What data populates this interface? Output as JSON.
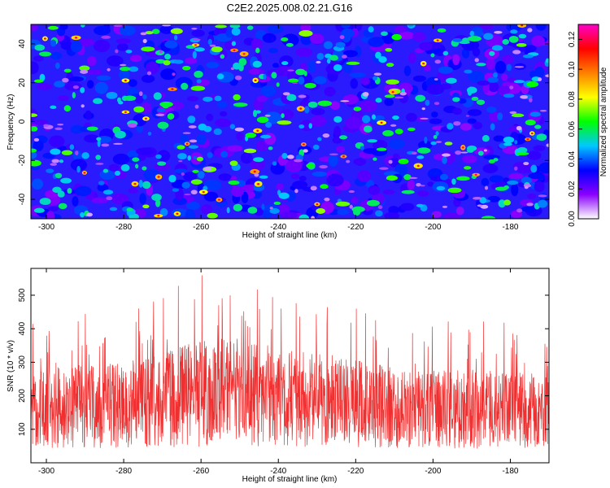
{
  "title": "C2E2.2025.008.02.21.G16",
  "chart_data": [
    {
      "type": "heatmap",
      "title": "C2E2.2025.008.02.21.G16",
      "xlabel": "Height of straight line (km)",
      "ylabel": "Frequency (Hz)",
      "xlim": [
        -304,
        -170
      ],
      "ylim": [
        -50,
        50
      ],
      "xticks": [
        -300,
        -280,
        -260,
        -240,
        -220,
        -200,
        -180
      ],
      "yticks": [
        -40,
        -20,
        0,
        20,
        40
      ],
      "colorbar": {
        "label": "Normalized spectral amplitude",
        "range": [
          0,
          0.13
        ],
        "ticks": [
          "0.00",
          "0.02",
          "0.04",
          "0.06",
          "0.08",
          "0.10",
          "0.12"
        ],
        "colors": [
          "#ffffff",
          "#8a00ff",
          "#0000ff",
          "#00c8ff",
          "#00ff00",
          "#ffff00",
          "#ff8000",
          "#ff0000",
          "#ff00c8"
        ]
      },
      "values_description_note": ""
    },
    {
      "type": "line",
      "xlabel": "Height of straight line (km)",
      "ylabel": "SNR (10 * v/v)",
      "xlim": [
        -304,
        -170
      ],
      "ylim": [
        0,
        580
      ],
      "xticks": [
        -300,
        -280,
        -260,
        -240,
        -220,
        -200,
        -180
      ],
      "yticks": [
        100,
        200,
        300,
        400,
        500
      ],
      "color": "#f03030",
      "envelope_x": [
        -304,
        -290,
        -280,
        -270,
        -260,
        -250,
        -240,
        -230,
        -220,
        -210,
        -200,
        -190,
        -180,
        -170
      ],
      "envelope_mean": [
        160,
        165,
        170,
        185,
        200,
        210,
        205,
        195,
        180,
        170,
        160,
        155,
        150,
        150
      ],
      "envelope_min": [
        30,
        30,
        30,
        30,
        30,
        30,
        30,
        30,
        30,
        30,
        30,
        30,
        30,
        30
      ],
      "envelope_max": [
        420,
        450,
        460,
        500,
        580,
        570,
        520,
        490,
        470,
        430,
        420,
        430,
        420,
        410
      ]
    }
  ]
}
